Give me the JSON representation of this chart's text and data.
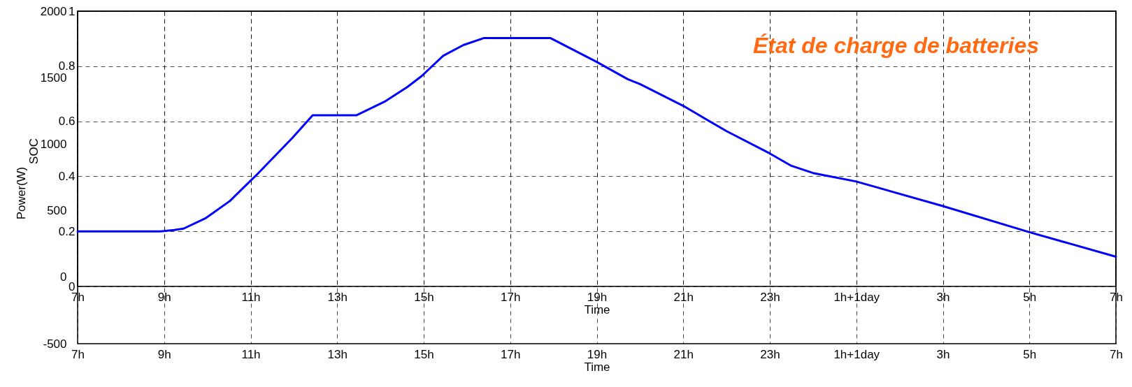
{
  "chart_data": [
    {
      "type": "line",
      "xlabel": "Time",
      "ylabel": "Power(W)",
      "xlim": [
        "--01-01T07:00",
        "--01-02T07:00"
      ],
      "ylim": [
        -500,
        2000
      ],
      "xticks": [
        {
          "value": "--01-01T07:00",
          "label": "7h"
        },
        {
          "value": "--01-01T09:00",
          "label": "9h"
        },
        {
          "value": "--01-01T11:00",
          "label": "11h"
        },
        {
          "value": "--01-01T13:00",
          "label": "13h"
        },
        {
          "value": "--01-01T15:00",
          "label": "15h"
        },
        {
          "value": "--01-01T17:00",
          "label": "17h"
        },
        {
          "value": "--01-01T19:00",
          "label": "19h"
        },
        {
          "value": "--01-01T21:00",
          "label": "21h"
        },
        {
          "value": "--01-01T23:00",
          "label": "23h"
        },
        {
          "value": "--01-02T01:00",
          "label": "1h+1day"
        },
        {
          "value": "--01-02T03:00",
          "label": "3h"
        },
        {
          "value": "--01-02T05:00",
          "label": "5h"
        },
        {
          "value": "--01-02T07:00",
          "label": "7h"
        }
      ],
      "yticks": [
        -500,
        0,
        500,
        1000,
        1500,
        2000
      ],
      "grid": "x"
    },
    {
      "type": "line",
      "xlabel": "Time",
      "ylabel": "SOC",
      "xlim": [
        "--01-01T07:00",
        "--01-02T07:00"
      ],
      "ylim": [
        0,
        1
      ],
      "xticks": [
        {
          "value": "--01-01T07:00",
          "label": "7h"
        },
        {
          "value": "--01-01T09:00",
          "label": "9h"
        },
        {
          "value": "--01-01T11:00",
          "label": "11h"
        },
        {
          "value": "--01-01T13:00",
          "label": "13h"
        },
        {
          "value": "--01-01T15:00",
          "label": "15h"
        },
        {
          "value": "--01-01T17:00",
          "label": "17h"
        },
        {
          "value": "--01-01T19:00",
          "label": "19h"
        },
        {
          "value": "--01-01T21:00",
          "label": "21h"
        },
        {
          "value": "--01-01T23:00",
          "label": "23h"
        },
        {
          "value": "--01-02T01:00",
          "label": "1h+1day"
        },
        {
          "value": "--01-02T03:00",
          "label": "3h"
        },
        {
          "value": "--01-02T05:00",
          "label": "5h"
        },
        {
          "value": "--01-02T07:00",
          "label": "7h"
        }
      ],
      "yticks": [
        0,
        0.2,
        0.4,
        0.6,
        0.8,
        1
      ],
      "grid": true,
      "annotations": [
        "État de charge de batteries"
      ],
      "series": [
        {
          "color": "#0000ff",
          "x": [
            "--01-01T07:00",
            "--01-01T08:55",
            "--01-01T09:14",
            "--01-01T09:27",
            "--01-01T09:57",
            "--01-01T10:31",
            "--01-01T11:10",
            "--01-01T11:58",
            "--01-01T12:26",
            "--01-01T13:27",
            "--01-01T14:07",
            "--01-01T14:37",
            "--01-01T14:57",
            "--01-01T15:27",
            "--01-01T15:55",
            "--01-01T16:23",
            "--01-01T17:56",
            "--01-01T18:59",
            "--01-01T19:43",
            "--01-01T20:00",
            "--01-01T21:00",
            "--01-01T22:00",
            "--01-01T23:00",
            "--01-01T23:30",
            "--01-02T00:00",
            "--01-02T01:00",
            "--01-02T03:00",
            "--01-02T05:00",
            "--01-02T07:00"
          ],
          "values": [
            0.2,
            0.2,
            0.205,
            0.21,
            0.247,
            0.31,
            0.41,
            0.54,
            0.622,
            0.622,
            0.673,
            0.724,
            0.764,
            0.838,
            0.877,
            0.902,
            0.902,
            0.817,
            0.753,
            0.735,
            0.656,
            0.564,
            0.483,
            0.438,
            0.412,
            0.381,
            0.292,
            0.197,
            0.108
          ]
        }
      ]
    }
  ]
}
